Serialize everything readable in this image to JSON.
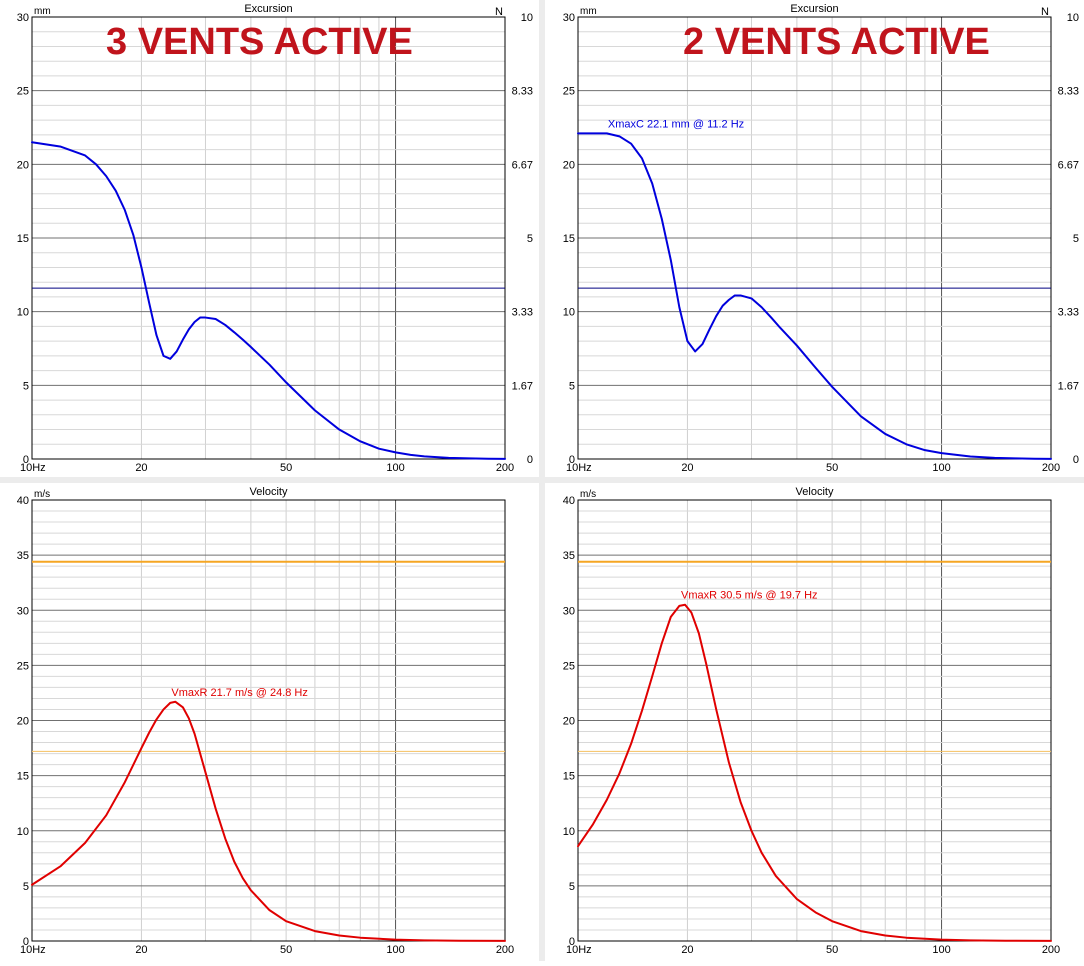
{
  "chart_data": [
    {
      "type": "line",
      "title": "Excursion",
      "banner": "3 VENTS ACTIVE",
      "ylabel": "mm",
      "y2label": "N",
      "xscale": "log",
      "xlim": [
        10,
        200
      ],
      "ylim": [
        0,
        30
      ],
      "xticks": [
        10,
        20,
        50,
        100,
        200
      ],
      "xtick_labels": [
        "10Hz",
        "20",
        "50",
        "100",
        "200"
      ],
      "yticks": [
        0,
        5,
        10,
        15,
        20,
        25,
        30
      ],
      "ytick_labels": [
        "0",
        "5",
        "10",
        "15",
        "20",
        "25",
        "30"
      ],
      "y2ticks": [
        0,
        5,
        10,
        15,
        20,
        25,
        30
      ],
      "y2tick_labels": [
        "0",
        "1.67",
        "3.33",
        "5",
        "6.67",
        "8.33",
        "10"
      ],
      "grid": true,
      "reference_lines": [
        {
          "y": 11.6,
          "color": "#000080"
        }
      ],
      "series": [
        {
          "color": "#0000dd",
          "x": [
            10,
            12,
            14,
            15,
            16,
            17,
            18,
            19,
            20,
            21,
            22,
            23,
            24,
            25,
            26,
            27,
            28,
            29,
            30,
            32,
            34,
            36,
            38,
            40,
            45,
            50,
            60,
            70,
            80,
            90,
            100,
            110,
            120,
            140,
            160,
            180,
            200
          ],
          "y": [
            21.5,
            21.2,
            20.6,
            20.0,
            19.2,
            18.2,
            16.9,
            15.2,
            13.0,
            10.6,
            8.4,
            7.0,
            6.8,
            7.3,
            8.1,
            8.8,
            9.3,
            9.6,
            9.6,
            9.5,
            9.1,
            8.6,
            8.1,
            7.6,
            6.4,
            5.2,
            3.3,
            2.0,
            1.2,
            0.7,
            0.45,
            0.28,
            0.18,
            0.08,
            0.04,
            0.02,
            0.01
          ]
        }
      ]
    },
    {
      "type": "line",
      "title": "Excursion",
      "banner": "2 VENTS ACTIVE",
      "ylabel": "mm",
      "y2label": "N",
      "xscale": "log",
      "xlim": [
        10,
        200
      ],
      "ylim": [
        0,
        30
      ],
      "xticks": [
        10,
        20,
        50,
        100,
        200
      ],
      "xtick_labels": [
        "10Hz",
        "20",
        "50",
        "100",
        "200"
      ],
      "yticks": [
        0,
        5,
        10,
        15,
        20,
        25,
        30
      ],
      "ytick_labels": [
        "0",
        "5",
        "10",
        "15",
        "20",
        "25",
        "30"
      ],
      "y2ticks": [
        0,
        5,
        10,
        15,
        20,
        25,
        30
      ],
      "y2tick_labels": [
        "0",
        "1.67",
        "3.33",
        "5",
        "6.67",
        "8.33",
        "10"
      ],
      "grid": true,
      "reference_lines": [
        {
          "y": 11.6,
          "color": "#000080"
        }
      ],
      "annotation": {
        "text": "XmaxC 22.1 mm  @ 11.2 Hz",
        "x": 11.2,
        "y": 22.1,
        "color": "#0000dd"
      },
      "series": [
        {
          "color": "#0000dd",
          "x": [
            10,
            11,
            12,
            13,
            14,
            15,
            16,
            17,
            18,
            19,
            20,
            21,
            22,
            23,
            24,
            25,
            26,
            27,
            28,
            30,
            32,
            34,
            36,
            40,
            45,
            50,
            60,
            70,
            80,
            90,
            100,
            120,
            140,
            160,
            180,
            200
          ],
          "y": [
            22.1,
            22.1,
            22.1,
            21.9,
            21.4,
            20.4,
            18.7,
            16.3,
            13.5,
            10.3,
            8.0,
            7.3,
            7.8,
            8.8,
            9.7,
            10.4,
            10.8,
            11.1,
            11.1,
            10.9,
            10.3,
            9.6,
            8.9,
            7.7,
            6.2,
            4.9,
            2.9,
            1.7,
            1.0,
            0.6,
            0.4,
            0.17,
            0.08,
            0.04,
            0.02,
            0.01
          ]
        }
      ]
    },
    {
      "type": "line",
      "title": "Velocity",
      "ylabel": "m/s",
      "xscale": "log",
      "xlim": [
        10,
        200
      ],
      "ylim": [
        0,
        40
      ],
      "xticks": [
        10,
        20,
        50,
        100,
        200
      ],
      "xtick_labels": [
        "10Hz",
        "20",
        "50",
        "100",
        "200"
      ],
      "yticks": [
        0,
        5,
        10,
        15,
        20,
        25,
        30,
        35,
        40
      ],
      "ytick_labels": [
        "0",
        "5",
        "10",
        "15",
        "20",
        "25",
        "30",
        "35",
        "40"
      ],
      "grid": true,
      "reference_lines": [
        {
          "y": 34.4,
          "color": "#f5a623",
          "width": 2
        },
        {
          "y": 17.2,
          "color": "#f5c060",
          "width": 1
        }
      ],
      "annotation": {
        "text": "VmaxR 21.7 m/s @ 24.8 Hz",
        "x": 24.8,
        "y": 21.7,
        "color": "#e00000"
      },
      "series": [
        {
          "color": "#e00000",
          "x": [
            10,
            12,
            14,
            16,
            18,
            20,
            21,
            22,
            23,
            24,
            24.8,
            26,
            27,
            28,
            30,
            32,
            34,
            36,
            38,
            40,
            45,
            50,
            60,
            70,
            80,
            100,
            120,
            150,
            200
          ],
          "y": [
            5.1,
            6.8,
            8.9,
            11.4,
            14.4,
            17.5,
            18.9,
            20.1,
            21.0,
            21.6,
            21.7,
            21.2,
            20.2,
            18.8,
            15.3,
            12.0,
            9.3,
            7.2,
            5.7,
            4.6,
            2.8,
            1.8,
            0.9,
            0.5,
            0.3,
            0.12,
            0.06,
            0.02,
            0.01
          ]
        }
      ]
    },
    {
      "type": "line",
      "title": "Velocity",
      "ylabel": "m/s",
      "xscale": "log",
      "xlim": [
        10,
        200
      ],
      "ylim": [
        0,
        40
      ],
      "xticks": [
        10,
        20,
        50,
        100,
        200
      ],
      "xtick_labels": [
        "10Hz",
        "20",
        "50",
        "100",
        "200"
      ],
      "yticks": [
        0,
        5,
        10,
        15,
        20,
        25,
        30,
        35,
        40
      ],
      "ytick_labels": [
        "0",
        "5",
        "10",
        "15",
        "20",
        "25",
        "30",
        "35",
        "40"
      ],
      "grid": true,
      "reference_lines": [
        {
          "y": 34.4,
          "color": "#f5a623",
          "width": 2
        },
        {
          "y": 17.2,
          "color": "#f5c060",
          "width": 1
        }
      ],
      "annotation": {
        "text": "VmaxR 30.5 m/s @ 19.7 Hz",
        "x": 19.7,
        "y": 30.5,
        "color": "#e00000"
      },
      "series": [
        {
          "color": "#e00000",
          "x": [
            10,
            11,
            12,
            13,
            14,
            15,
            16,
            17,
            18,
            19,
            19.7,
            20.5,
            21.5,
            22.5,
            24,
            26,
            28,
            30,
            32,
            35,
            40,
            45,
            50,
            60,
            70,
            80,
            100,
            120,
            150,
            200
          ],
          "y": [
            8.6,
            10.6,
            12.8,
            15.2,
            17.9,
            20.9,
            24.0,
            27.0,
            29.4,
            30.4,
            30.5,
            29.8,
            27.9,
            25.2,
            21.0,
            16.2,
            12.6,
            10.0,
            8.0,
            5.9,
            3.8,
            2.6,
            1.8,
            0.9,
            0.5,
            0.3,
            0.12,
            0.06,
            0.02,
            0.01
          ]
        }
      ]
    }
  ]
}
